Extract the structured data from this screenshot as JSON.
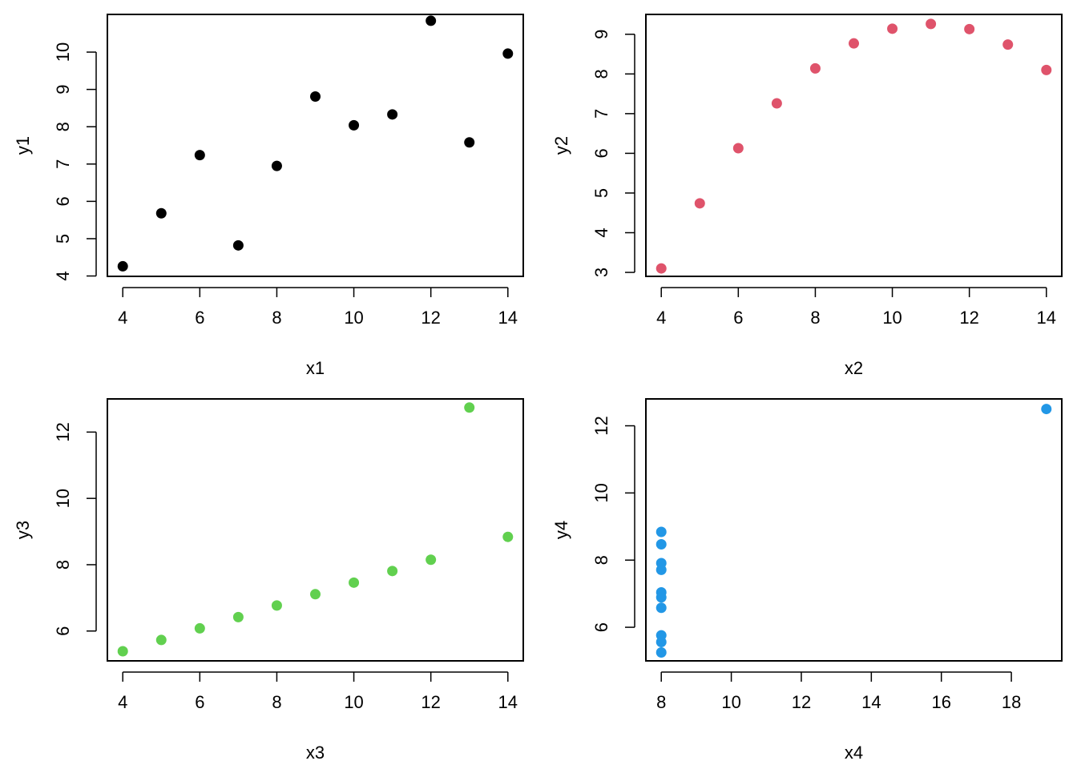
{
  "chart_data": [
    {
      "type": "scatter",
      "xlabel": "x1",
      "ylabel": "y1",
      "color": "#000000",
      "xlim": [
        3.6,
        14.4
      ],
      "ylim": [
        3.99,
        11.01
      ],
      "xticks": [
        4,
        6,
        8,
        10,
        12,
        14
      ],
      "yticks": [
        4,
        5,
        6,
        7,
        8,
        9,
        10
      ],
      "x": [
        10,
        8,
        13,
        9,
        11,
        14,
        6,
        4,
        12,
        7,
        5
      ],
      "y": [
        8.04,
        6.95,
        7.58,
        8.81,
        8.33,
        9.96,
        7.24,
        4.26,
        10.84,
        4.82,
        5.68
      ]
    },
    {
      "type": "scatter",
      "xlabel": "x2",
      "ylabel": "y2",
      "color": "#DF536B",
      "xlim": [
        3.6,
        14.4
      ],
      "ylim": [
        2.9,
        9.5
      ],
      "xticks": [
        4,
        6,
        8,
        10,
        12,
        14
      ],
      "yticks": [
        3,
        4,
        5,
        6,
        7,
        8,
        9
      ],
      "x": [
        10,
        8,
        13,
        9,
        11,
        14,
        6,
        4,
        12,
        7,
        5
      ],
      "y": [
        9.14,
        8.14,
        8.74,
        8.77,
        9.26,
        8.1,
        6.13,
        3.1,
        9.13,
        7.26,
        4.74
      ]
    },
    {
      "type": "scatter",
      "xlabel": "x3",
      "ylabel": "y3",
      "color": "#61D04F",
      "xlim": [
        3.6,
        14.4
      ],
      "ylim": [
        5.1,
        13.0
      ],
      "xticks": [
        4,
        6,
        8,
        10,
        12,
        14
      ],
      "yticks": [
        6,
        8,
        10,
        12
      ],
      "x": [
        10,
        8,
        13,
        9,
        11,
        14,
        6,
        4,
        12,
        7,
        5
      ],
      "y": [
        7.46,
        6.77,
        12.74,
        7.11,
        7.81,
        8.84,
        6.08,
        5.39,
        8.15,
        6.42,
        5.73
      ]
    },
    {
      "type": "scatter",
      "xlabel": "x4",
      "ylabel": "y4",
      "color": "#2297E6",
      "xlim": [
        7.56,
        19.44
      ],
      "ylim": [
        5.0,
        12.8
      ],
      "xticks": [
        8,
        10,
        12,
        14,
        16,
        18
      ],
      "yticks": [
        6,
        8,
        10,
        12
      ],
      "x": [
        8,
        8,
        8,
        8,
        8,
        8,
        8,
        19,
        8,
        8,
        8
      ],
      "y": [
        6.58,
        5.76,
        7.71,
        8.84,
        8.47,
        7.04,
        5.25,
        12.5,
        5.56,
        7.91,
        6.89
      ]
    }
  ]
}
